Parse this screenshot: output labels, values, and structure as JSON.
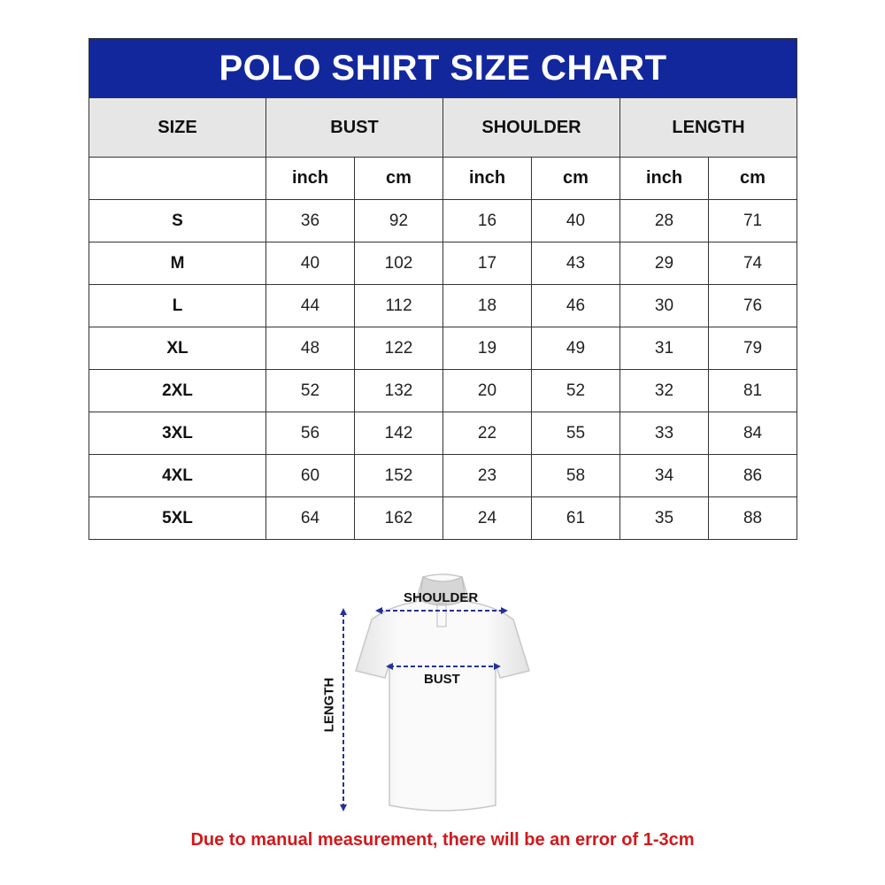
{
  "title": "POLO SHIRT SIZE CHART",
  "headers": {
    "size": "SIZE",
    "bust": "BUST",
    "shoulder": "SHOULDER",
    "length": "LENGTH"
  },
  "units": [
    "inch",
    "cm",
    "inch",
    "cm",
    "inch",
    "cm"
  ],
  "rows": [
    [
      "S",
      "36",
      "92",
      "16",
      "40",
      "28",
      "71"
    ],
    [
      "M",
      "40",
      "102",
      "17",
      "43",
      "29",
      "74"
    ],
    [
      "L",
      "44",
      "112",
      "18",
      "46",
      "30",
      "76"
    ],
    [
      "XL",
      "48",
      "122",
      "19",
      "49",
      "31",
      "79"
    ],
    [
      "2XL",
      "52",
      "132",
      "20",
      "52",
      "32",
      "81"
    ],
    [
      "3XL",
      "56",
      "142",
      "22",
      "55",
      "33",
      "84"
    ],
    [
      "4XL",
      "60",
      "152",
      "23",
      "58",
      "34",
      "86"
    ],
    [
      "5XL",
      "64",
      "162",
      "24",
      "61",
      "35",
      "88"
    ]
  ],
  "diagram": {
    "shoulder": "SHOULDER",
    "bust": "BUST",
    "length": "LENGTH"
  },
  "note": "Due to manual measurement, there will be an error of 1-3cm",
  "colors": {
    "header_blue": "#13279d",
    "header_grey": "#e6e6e6",
    "note_red": "#d2181b",
    "arrow_blue": "#27309a"
  }
}
